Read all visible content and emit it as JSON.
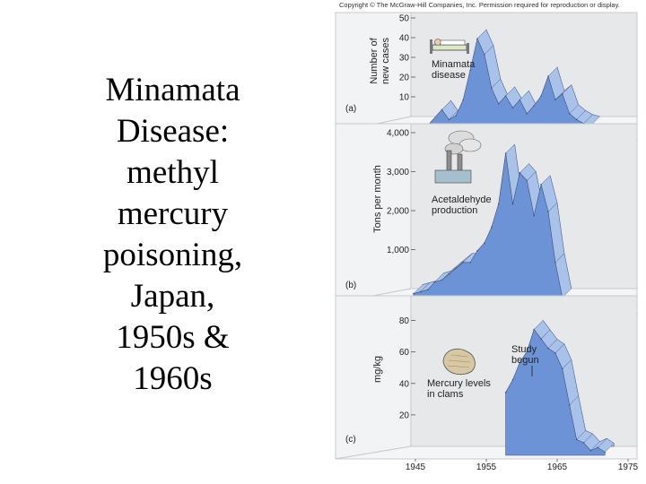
{
  "slide_title_lines": [
    "Minamata",
    "Disease:",
    "methyl",
    "mercury",
    "poisoning,",
    "Japan,",
    "1950s &",
    "1960s"
  ],
  "copyright": "Copyright © The McGraw-Hill Companies, Inc. Permission required for reproduction or display.",
  "colors": {
    "fill": "#6b93d6",
    "side": "#a9c2ea",
    "panel_wall": "#e6e8ea",
    "edge": "#44557a"
  },
  "chart_data": [
    {
      "type": "area",
      "panel_label": "(a)",
      "ylabel": "Number of new cases",
      "ylabel_lines": [
        "Number of",
        "new cases"
      ],
      "annotation": [
        "Minamata",
        "disease"
      ],
      "icon": "patient-in-bed-icon",
      "xlim": [
        1945,
        1975
      ],
      "ylim": [
        0,
        50
      ],
      "yticks": [
        10,
        20,
        30,
        40,
        50
      ],
      "xticks": [
        1945,
        1955,
        1965,
        1975
      ],
      "x": [
        1948,
        1950,
        1951,
        1952,
        1953,
        1954,
        1955,
        1956,
        1957,
        1958,
        1959,
        1960,
        1961,
        1962,
        1963,
        1964,
        1965,
        1966,
        1967,
        1968,
        1969,
        1970,
        1971
      ],
      "y": [
        0,
        8,
        3,
        5,
        13,
        28,
        44,
        36,
        19,
        11,
        15,
        9,
        13,
        6,
        10,
        15,
        25,
        13,
        16,
        6,
        3,
        1,
        0
      ]
    },
    {
      "type": "area",
      "panel_label": "(b)",
      "ylabel": "Tons per month",
      "annotation": [
        "Acetaldehyde",
        "production"
      ],
      "icon": "factory-icon",
      "xlim": [
        1945,
        1975
      ],
      "ylim": [
        0,
        4000
      ],
      "yticks": [
        1000,
        2000,
        3000,
        4000
      ],
      "ytick_labels": [
        "1,000",
        "2,000",
        "3,000",
        "4,000"
      ],
      "xticks": [
        1945,
        1955,
        1965,
        1975
      ],
      "x": [
        1946,
        1947,
        1948,
        1949,
        1950,
        1951,
        1952,
        1953,
        1954,
        1955,
        1956,
        1957,
        1958,
        1959,
        1960,
        1961,
        1962,
        1963,
        1964,
        1965,
        1966,
        1967
      ],
      "y": [
        100,
        150,
        200,
        400,
        450,
        600,
        750,
        900,
        900,
        1200,
        1400,
        1800,
        2400,
        3700,
        2400,
        3200,
        3000,
        2100,
        2900,
        2200,
        900,
        0
      ]
    },
    {
      "type": "area",
      "panel_label": "(c)",
      "ylabel": "mg/kg",
      "annotation": [
        "Mercury levels",
        "in clams"
      ],
      "annotation_2": [
        "Study",
        "begun"
      ],
      "icon": "clam-icon",
      "xlim": [
        1945,
        1975
      ],
      "ylim": [
        0,
        90
      ],
      "yticks": [
        20,
        40,
        60,
        80
      ],
      "xticks": [
        1945,
        1955,
        1965,
        1975
      ],
      "x": [
        1959,
        1960,
        1961,
        1962,
        1963,
        1964,
        1965,
        1966,
        1967,
        1968,
        1969,
        1970,
        1971,
        1972,
        1973
      ],
      "y": [
        40,
        48,
        59,
        66,
        80,
        74,
        68,
        65,
        55,
        32,
        10,
        8,
        3,
        5,
        2
      ]
    }
  ]
}
